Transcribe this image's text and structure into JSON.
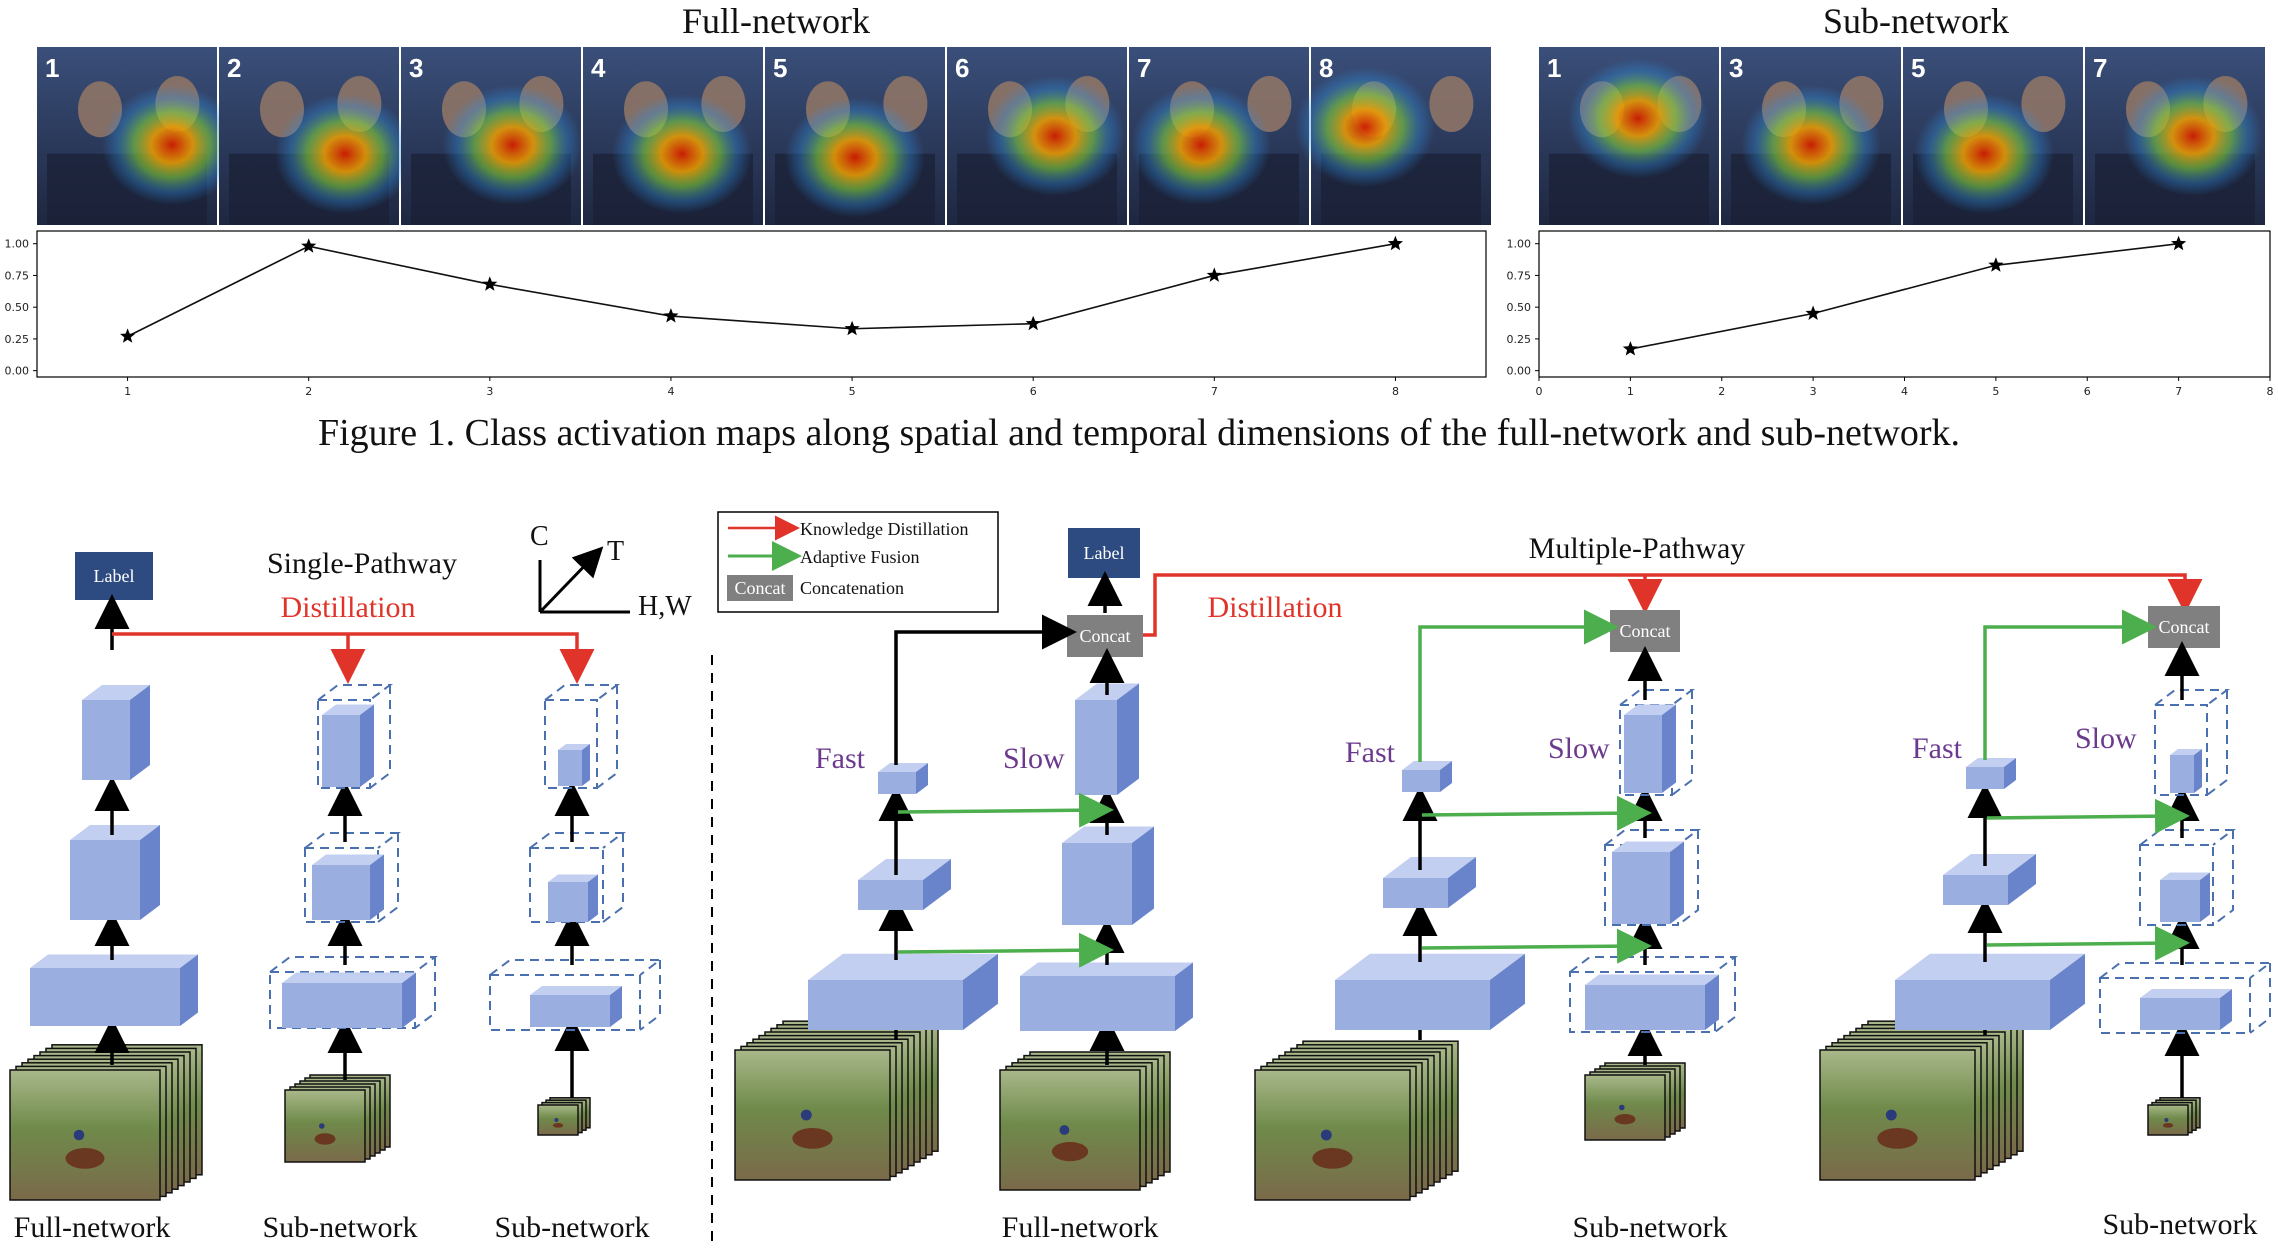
{
  "figure1": {
    "full_title": "Full-network",
    "sub_title": "Sub-network",
    "full_frames": [
      "1",
      "2",
      "3",
      "4",
      "5",
      "6",
      "7",
      "8"
    ],
    "sub_frames": [
      "1",
      "3",
      "5",
      "7"
    ],
    "caption": "Figure 1. Class activation maps along spatial and temporal dimensions of the full-network and sub-network."
  },
  "chart_data": [
    {
      "type": "line",
      "x": [
        1,
        2,
        3,
        4,
        5,
        6,
        7,
        8
      ],
      "values": [
        0.27,
        0.98,
        0.68,
        0.43,
        0.33,
        0.37,
        0.75,
        1.0
      ],
      "xticks": [
        "1",
        "2",
        "3",
        "4",
        "5",
        "6",
        "7",
        "8"
      ],
      "yticks": [
        "0.00",
        "0.25",
        "0.50",
        "0.75",
        "1.00"
      ],
      "xlim": [
        0.5,
        8.5
      ],
      "ylim": [
        -0.05,
        1.1
      ],
      "marker": "star"
    },
    {
      "type": "line",
      "x": [
        1,
        3,
        5,
        7
      ],
      "values": [
        0.17,
        0.45,
        0.83,
        1.0
      ],
      "xticks": [
        "0",
        "1",
        "2",
        "3",
        "4",
        "5",
        "6",
        "7",
        "8"
      ],
      "yticks": [
        "0.00",
        "0.25",
        "0.50",
        "0.75",
        "1.00"
      ],
      "xlim": [
        0,
        8
      ],
      "ylim": [
        -0.05,
        1.1
      ],
      "marker": "star"
    }
  ],
  "figure2": {
    "single_title": "Single-Pathway",
    "multi_title": "Multiple-Pathway",
    "distillation": "Distillation",
    "label": "Label",
    "concat": "Concat",
    "fast": "Fast",
    "slow": "Slow",
    "axes": {
      "c": "C",
      "t": "T",
      "hw": "H,W"
    },
    "legend": [
      {
        "label": "Knowledge Distillation",
        "color": "#e0342a"
      },
      {
        "label": "Adaptive Fusion",
        "color": "#4cae4c"
      },
      {
        "label": "Concatenation",
        "box": "Concat"
      }
    ],
    "bottom_labels": [
      "Full-network",
      "Sub-network",
      "Sub-network",
      "Full-network",
      "Sub-network",
      "Sub-network"
    ]
  },
  "colors": {
    "cube_front": "#9aaee0",
    "cube_top": "#c3cff0",
    "cube_side": "#6a84cc",
    "red": "#e0342a",
    "green": "#4cae4c",
    "label_box": "#2d4b80",
    "concat_box": "#808080"
  }
}
